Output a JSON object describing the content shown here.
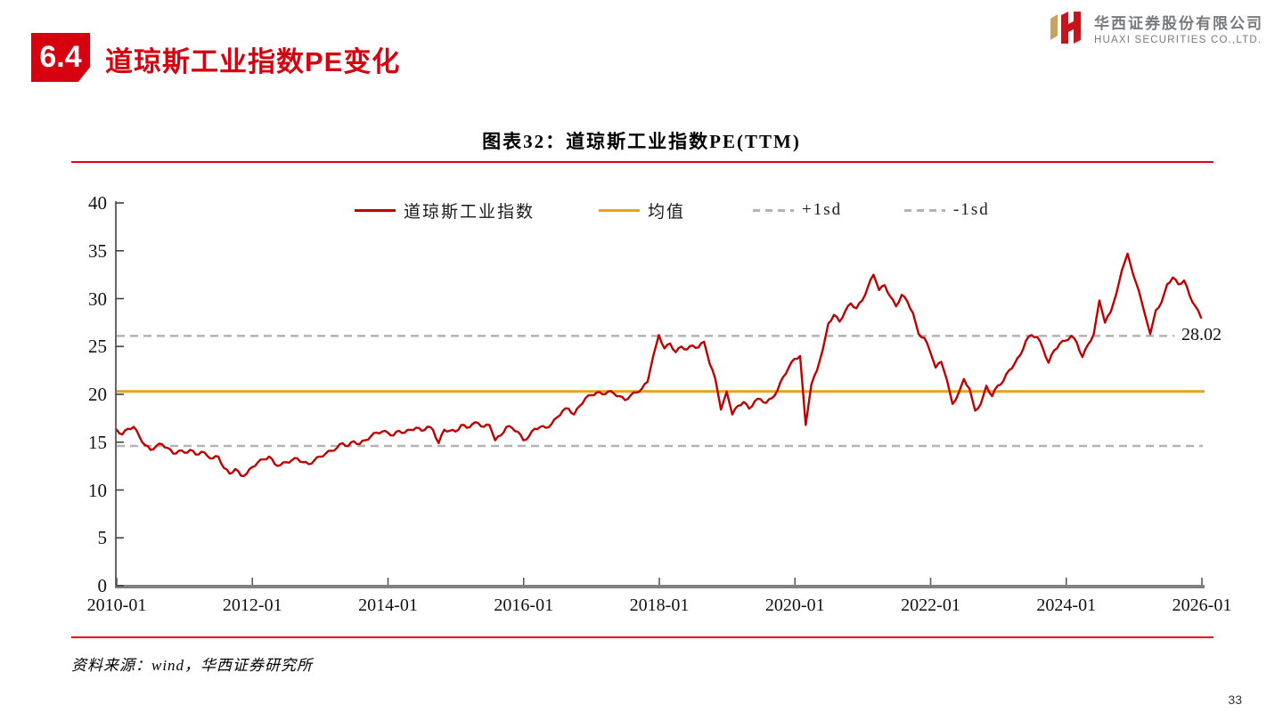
{
  "page": {
    "section_number": "6.4",
    "section_title": "道琼斯工业指数PE变化",
    "source_note": "资料来源：wind，华西证券研究所",
    "page_number": "33"
  },
  "logo": {
    "company_cn": "华西证券股份有限公司",
    "company_en": "HUAXI SECURITIES CO.,LTD."
  },
  "figure": {
    "title": "图表32：道琼斯工业指数PE(TTM)"
  },
  "chart_data": {
    "type": "line",
    "title": "图表32：道琼斯工业指数PE(TTM)",
    "ylim": [
      0,
      40
    ],
    "y_ticks": [
      0,
      5,
      10,
      15,
      20,
      25,
      30,
      35,
      40
    ],
    "x_tick_labels": [
      "2010-01",
      "2012-01",
      "2014-01",
      "2016-01",
      "2018-01",
      "2020-01",
      "2022-01",
      "2024-01",
      "2026-01"
    ],
    "x_start": "2010-01",
    "x_end": "2026-01",
    "x_freq": "monthly",
    "grid": "off",
    "legend_position": "top",
    "end_label": "28.02",
    "colors": {
      "series": "#c00000",
      "mean": "#e8a21b",
      "sd_band": "#b3b3b3",
      "accent_red": "#d7000f",
      "rule_red": "#e60012"
    },
    "reference_lines": [
      {
        "name": "均值",
        "value": 20.3,
        "style": "solid",
        "color": "#e8a21b"
      },
      {
        "name": "+1sd",
        "value": 26.1,
        "style": "dashed",
        "color": "#b3b3b3"
      },
      {
        "name": "-1sd",
        "value": 14.6,
        "style": "dashed",
        "color": "#b3b3b3"
      }
    ],
    "series": [
      {
        "name": "道琼斯工业指数",
        "color": "#c00000",
        "last_value": 28.02,
        "values": [
          16.3,
          15.8,
          16.4,
          16.6,
          15.6,
          14.7,
          14.2,
          14.6,
          14.8,
          14.4,
          13.8,
          14.1,
          13.9,
          14.2,
          13.7,
          14.0,
          13.6,
          13.3,
          13.5,
          12.3,
          11.7,
          12.2,
          11.5,
          11.7,
          12.4,
          12.9,
          13.2,
          13.5,
          12.7,
          12.6,
          12.9,
          13.1,
          13.3,
          12.9,
          12.7,
          13.1,
          13.5,
          13.8,
          14.1,
          14.4,
          14.9,
          14.6,
          15.1,
          14.8,
          15.2,
          15.6,
          16.0,
          16.1,
          16.0,
          15.7,
          16.2,
          16.0,
          16.3,
          16.5,
          16.2,
          16.6,
          16.3,
          14.9,
          16.3,
          16.2,
          16.1,
          16.8,
          16.5,
          16.9,
          17.0,
          16.6,
          16.8,
          15.2,
          15.7,
          16.6,
          16.5,
          16.1,
          15.2,
          15.6,
          16.4,
          16.6,
          16.5,
          16.9,
          17.6,
          18.3,
          18.5,
          17.9,
          18.8,
          19.6,
          19.9,
          20.2,
          20.0,
          20.3,
          20.1,
          19.8,
          19.4,
          19.9,
          20.2,
          20.6,
          21.3,
          24.0,
          26.2,
          24.8,
          25.3,
          24.4,
          25.0,
          24.7,
          25.1,
          24.9,
          25.5,
          23.2,
          21.6,
          18.4,
          20.3,
          17.9,
          18.8,
          19.2,
          18.5,
          19.3,
          19.5,
          19.1,
          19.6,
          20.4,
          21.8,
          22.8,
          23.7,
          24.0,
          16.8,
          21.0,
          22.5,
          24.6,
          27.4,
          28.3,
          27.6,
          28.7,
          29.5,
          29.0,
          29.8,
          31.2,
          32.5,
          30.9,
          31.4,
          30.2,
          29.2,
          30.4,
          29.7,
          28.5,
          26.3,
          25.9,
          24.5,
          22.8,
          23.4,
          21.5,
          19.0,
          20.0,
          21.6,
          20.6,
          18.3,
          19.0,
          20.9,
          19.8,
          20.9,
          21.4,
          22.5,
          23.2,
          24.1,
          25.6,
          26.2,
          26.0,
          24.8,
          23.3,
          24.6,
          25.3,
          25.6,
          26.1,
          25.4,
          23.9,
          25.2,
          26.3,
          29.8,
          27.5,
          28.6,
          30.5,
          33.0,
          34.7,
          32.5,
          30.8,
          28.5,
          26.3,
          28.8,
          29.6,
          31.5,
          32.2,
          31.5,
          31.9,
          30.3,
          29.2,
          28.02
        ]
      }
    ],
    "legend": [
      {
        "label": "道琼斯工业指数"
      },
      {
        "label": "均值"
      },
      {
        "label": "+1sd"
      },
      {
        "label": "-1sd"
      }
    ]
  }
}
